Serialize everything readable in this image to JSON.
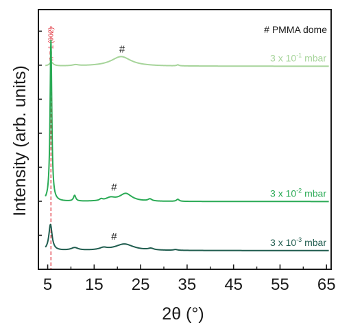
{
  "chart_data": {
    "type": "line",
    "xlabel": "2θ (°)",
    "ylabel": "Intensity (arb. units)",
    "xlim": [
      3,
      66
    ],
    "ylim": [
      0,
      1
    ],
    "xticks": [
      5,
      15,
      25,
      35,
      45,
      55,
      65
    ],
    "legend_note": "# PMMA dome",
    "reference_line": {
      "x": 5.7,
      "label": "n = 1 (002)",
      "color": "#e0303a"
    },
    "series": [
      {
        "name": "3 x 10⁻¹ mbar",
        "name_parts": [
          "3 x 10",
          "-1",
          " mbar"
        ],
        "color": "#a6d49a",
        "baseline": 0.782,
        "peaks": [
          {
            "x": 5.8,
            "h": 0.014,
            "w": 0.5
          },
          {
            "x": 11.0,
            "h": 0.004,
            "w": 0.8
          },
          {
            "x": 20.8,
            "h": 0.037,
            "w": 2.6
          },
          {
            "x": 33.0,
            "h": 0.004,
            "w": 0.3
          }
        ],
        "hash_x": 21.0
      },
      {
        "name": "3 x 10⁻² mbar",
        "name_parts": [
          "3 x 10",
          "-2",
          " mbar"
        ],
        "color": "#2aaa55",
        "baseline": 0.261,
        "peaks": [
          {
            "x": 5.7,
            "h": 0.62,
            "w": 0.22
          },
          {
            "x": 10.8,
            "h": 0.022,
            "w": 0.3
          },
          {
            "x": 16.5,
            "h": 0.006,
            "w": 0.4
          },
          {
            "x": 18.5,
            "h": 0.012,
            "w": 1.2
          },
          {
            "x": 21.8,
            "h": 0.03,
            "w": 1.6
          },
          {
            "x": 27.0,
            "h": 0.008,
            "w": 0.5
          },
          {
            "x": 33.0,
            "h": 0.008,
            "w": 0.35
          }
        ],
        "hash_x": 19.3
      },
      {
        "name": "3 x 10⁻³ mbar",
        "name_parts": [
          "3 x 10",
          "-3",
          " mbar"
        ],
        "color": "#1f5c4e",
        "baseline": 0.072,
        "peaks": [
          {
            "x": 5.6,
            "h": 0.1,
            "w": 0.42
          },
          {
            "x": 10.8,
            "h": 0.01,
            "w": 0.9
          },
          {
            "x": 17.0,
            "h": 0.008,
            "w": 1.0
          },
          {
            "x": 21.5,
            "h": 0.025,
            "w": 2.4
          },
          {
            "x": 27.2,
            "h": 0.006,
            "w": 0.7
          },
          {
            "x": 32.5,
            "h": 0.003,
            "w": 0.5
          }
        ],
        "hash_x": 19.3
      }
    ]
  }
}
